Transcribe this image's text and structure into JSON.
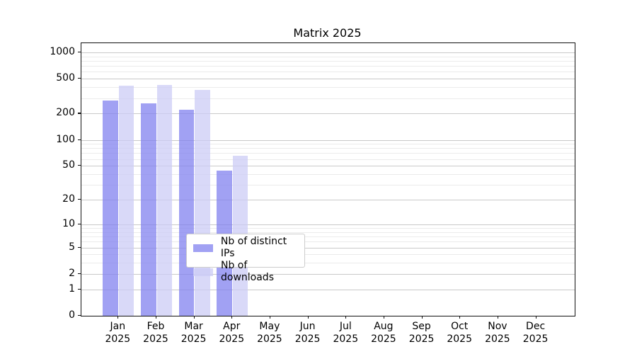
{
  "chart_data": {
    "type": "bar",
    "title": "Matrix 2025",
    "x_months": [
      "Jan",
      "Feb",
      "Mar",
      "Apr",
      "May",
      "Jun",
      "Jul",
      "Aug",
      "Sep",
      "Oct",
      "Nov",
      "Dec"
    ],
    "x_year": "2025",
    "series": [
      {
        "name": "Nb of distinct IPs",
        "color": "#8080ef",
        "rendered_color": "#a5a5f0",
        "opacity": 0.74,
        "values": [
          282,
          262,
          222,
          44,
          null,
          null,
          null,
          null,
          null,
          null,
          null,
          null
        ]
      },
      {
        "name": "Nb of downloads",
        "color": "#ccccf5",
        "rendered_color": "#d9d9f8",
        "opacity": 0.74,
        "values": [
          414,
          425,
          372,
          65,
          null,
          null,
          null,
          null,
          null,
          null,
          null,
          null
        ]
      }
    ],
    "y_scale": "log1p",
    "ylim": [
      0,
      1270
    ],
    "y_major_ticks": [
      1000,
      500,
      200,
      100,
      50,
      20,
      10,
      5,
      2,
      1,
      0
    ],
    "y_minor_gridlines": [
      3,
      4,
      6,
      7,
      8,
      9,
      30,
      40,
      60,
      70,
      80,
      90,
      300,
      400,
      600,
      700,
      800,
      900
    ],
    "grid": "both",
    "legend_position": "lower-center",
    "colors": {
      "grid_major": "#c9c9c9",
      "grid_minor": "#ebebeb",
      "spine": "#111111",
      "background": "#ffffff",
      "text": "#000000"
    }
  }
}
